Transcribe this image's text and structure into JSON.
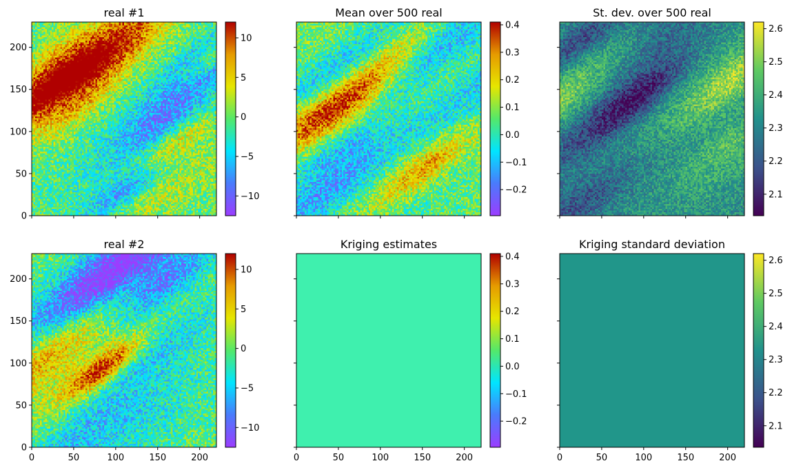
{
  "colors": {
    "rainbow_cmap": [
      "#9b3dff",
      "#4a7bfc",
      "#00e5ff",
      "#54e86a",
      "#e6e600",
      "#e69b00",
      "#b00000"
    ],
    "viridis_cmap": [
      "#440154",
      "#3b528b",
      "#21918c",
      "#5ec962",
      "#fde725"
    ],
    "kriging_estimate_fill": "#3ff0ae",
    "kriging_std_fill": "#21968a"
  },
  "chart_data": [
    {
      "type": "heatmap",
      "title": "real #1",
      "xlim": [
        0,
        220
      ],
      "ylim": [
        0,
        230
      ],
      "xticks": [
        0,
        50,
        100,
        150,
        200
      ],
      "yticks": [
        0,
        50,
        100,
        150,
        200
      ],
      "xtick_labels_visible": false,
      "ytick_labels_visible": true,
      "field": "random",
      "value_range": [
        -12,
        12
      ],
      "colorbar": {
        "cmap": "rainbow",
        "vmin": -12.5,
        "vmax": 12,
        "ticks": [
          -10,
          -5,
          0,
          5,
          10
        ],
        "tick_labels": [
          "−10",
          "−5",
          "0",
          "5",
          "10"
        ]
      }
    },
    {
      "type": "heatmap",
      "title": "Mean over 500 real",
      "xlim": [
        0,
        220
      ],
      "ylim": [
        0,
        230
      ],
      "xticks": [
        0,
        50,
        100,
        150,
        200
      ],
      "yticks": [
        0,
        50,
        100,
        150,
        200
      ],
      "xtick_labels_visible": false,
      "ytick_labels_visible": false,
      "field": "random",
      "value_range": [
        -0.29,
        0.41
      ],
      "colorbar": {
        "cmap": "rainbow",
        "vmin": -0.295,
        "vmax": 0.41,
        "ticks": [
          -0.2,
          -0.1,
          0.0,
          0.1,
          0.2,
          0.3,
          0.4
        ],
        "tick_labels": [
          "−0.2",
          "−0.1",
          "0.0",
          "0.1",
          "0.2",
          "0.3",
          "0.4"
        ]
      }
    },
    {
      "type": "heatmap",
      "title": "St. dev. over 500 real",
      "xlim": [
        0,
        220
      ],
      "ylim": [
        0,
        230
      ],
      "xticks": [
        0,
        50,
        100,
        150,
        200
      ],
      "yticks": [
        0,
        50,
        100,
        150,
        200
      ],
      "xtick_labels_visible": false,
      "ytick_labels_visible": false,
      "field": "random",
      "value_range": [
        2.03,
        2.62
      ],
      "colorbar": {
        "cmap": "viridis",
        "vmin": 2.035,
        "vmax": 2.62,
        "ticks": [
          2.1,
          2.2,
          2.3,
          2.4,
          2.5,
          2.6
        ],
        "tick_labels": [
          "2.1",
          "2.2",
          "2.3",
          "2.4",
          "2.5",
          "2.6"
        ]
      }
    },
    {
      "type": "heatmap",
      "title": "real #2",
      "xlim": [
        0,
        220
      ],
      "ylim": [
        0,
        230
      ],
      "xticks": [
        0,
        50,
        100,
        150,
        200
      ],
      "yticks": [
        0,
        50,
        100,
        150,
        200
      ],
      "xtick_labels_visible": true,
      "ytick_labels_visible": true,
      "field": "random",
      "value_range": [
        -12,
        12
      ],
      "colorbar": {
        "cmap": "rainbow",
        "vmin": -12.5,
        "vmax": 12,
        "ticks": [
          -10,
          -5,
          0,
          5,
          10
        ],
        "tick_labels": [
          "−10",
          "−5",
          "0",
          "5",
          "10"
        ]
      }
    },
    {
      "type": "heatmap",
      "title": "Kriging estimates",
      "xlim": [
        0,
        220
      ],
      "ylim": [
        0,
        230
      ],
      "xticks": [
        0,
        50,
        100,
        150,
        200
      ],
      "yticks": [
        0,
        50,
        100,
        150,
        200
      ],
      "xtick_labels_visible": true,
      "ytick_labels_visible": false,
      "field": "uniform",
      "uniform_value": 0.0,
      "colorbar": {
        "cmap": "rainbow",
        "vmin": -0.295,
        "vmax": 0.41,
        "ticks": [
          -0.2,
          -0.1,
          0.0,
          0.1,
          0.2,
          0.3,
          0.4
        ],
        "tick_labels": [
          "−0.2",
          "−0.1",
          "0.0",
          "0.1",
          "0.2",
          "0.3",
          "0.4"
        ]
      }
    },
    {
      "type": "heatmap",
      "title": "Kriging standard deviation",
      "xlim": [
        0,
        220
      ],
      "ylim": [
        0,
        230
      ],
      "xticks": [
        0,
        50,
        100,
        150,
        200
      ],
      "yticks": [
        0,
        50,
        100,
        150,
        200
      ],
      "xtick_labels_visible": true,
      "ytick_labels_visible": false,
      "field": "uniform",
      "uniform_value": 2.33,
      "colorbar": {
        "cmap": "viridis",
        "vmin": 2.035,
        "vmax": 2.62,
        "ticks": [
          2.1,
          2.2,
          2.3,
          2.4,
          2.5,
          2.6
        ],
        "tick_labels": [
          "2.1",
          "2.2",
          "2.3",
          "2.4",
          "2.5",
          "2.6"
        ]
      }
    }
  ]
}
